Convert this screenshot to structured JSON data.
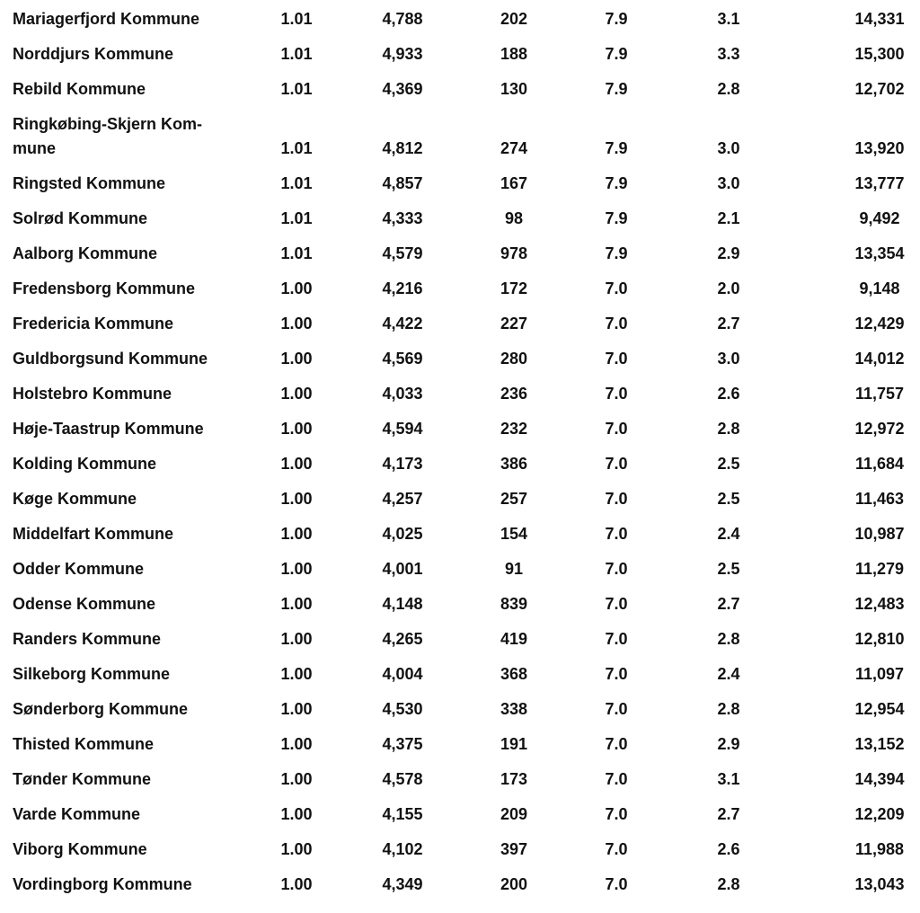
{
  "page": {
    "background_color": "#ffffff",
    "text_color": "#111111"
  },
  "table": {
    "description": "Municipality statistics table fragment (no visible headers)",
    "rows": [
      {
        "name": "Mariagerfjord Kommune",
        "values": [
          "1.01",
          "4,788",
          "202",
          "7.9",
          "3.1",
          "14,331"
        ]
      },
      {
        "name": "Norddjurs Kommune",
        "values": [
          "1.01",
          "4,933",
          "188",
          "7.9",
          "3.3",
          "15,300"
        ]
      },
      {
        "name": "Rebild Kommune",
        "values": [
          "1.01",
          "4,369",
          "130",
          "7.9",
          "2.8",
          "12,702"
        ]
      },
      {
        "name": "Ringkøbing-Skjern Kom-\nmune",
        "values": [
          "1.01",
          "4,812",
          "274",
          "7.9",
          "3.0",
          "13,920"
        ]
      },
      {
        "name": "Ringsted Kommune",
        "values": [
          "1.01",
          "4,857",
          "167",
          "7.9",
          "3.0",
          "13,777"
        ]
      },
      {
        "name": "Solrød Kommune",
        "values": [
          "1.01",
          "4,333",
          "98",
          "7.9",
          "2.1",
          "9,492"
        ]
      },
      {
        "name": "Aalborg Kommune",
        "values": [
          "1.01",
          "4,579",
          "978",
          "7.9",
          "2.9",
          "13,354"
        ]
      },
      {
        "name": "Fredensborg Kommune",
        "values": [
          "1.00",
          "4,216",
          "172",
          "7.0",
          "2.0",
          "9,148"
        ]
      },
      {
        "name": "Fredericia Kommune",
        "values": [
          "1.00",
          "4,422",
          "227",
          "7.0",
          "2.7",
          "12,429"
        ]
      },
      {
        "name": "Guldborgsund Kommune",
        "values": [
          "1.00",
          "4,569",
          "280",
          "7.0",
          "3.0",
          "14,012"
        ]
      },
      {
        "name": "Holstebro Kommune",
        "values": [
          "1.00",
          "4,033",
          "236",
          "7.0",
          "2.6",
          "11,757"
        ]
      },
      {
        "name": "Høje-Taastrup Kommune",
        "values": [
          "1.00",
          "4,594",
          "232",
          "7.0",
          "2.8",
          "12,972"
        ]
      },
      {
        "name": "Kolding Kommune",
        "values": [
          "1.00",
          "4,173",
          "386",
          "7.0",
          "2.5",
          "11,684"
        ]
      },
      {
        "name": "Køge Kommune",
        "values": [
          "1.00",
          "4,257",
          "257",
          "7.0",
          "2.5",
          "11,463"
        ]
      },
      {
        "name": "Middelfart Kommune",
        "values": [
          "1.00",
          "4,025",
          "154",
          "7.0",
          "2.4",
          "10,987"
        ]
      },
      {
        "name": "Odder Kommune",
        "values": [
          "1.00",
          "4,001",
          "91",
          "7.0",
          "2.5",
          "11,279"
        ]
      },
      {
        "name": "Odense Kommune",
        "values": [
          "1.00",
          "4,148",
          "839",
          "7.0",
          "2.7",
          "12,483"
        ]
      },
      {
        "name": "Randers Kommune",
        "values": [
          "1.00",
          "4,265",
          "419",
          "7.0",
          "2.8",
          "12,810"
        ]
      },
      {
        "name": "Silkeborg Kommune",
        "values": [
          "1.00",
          "4,004",
          "368",
          "7.0",
          "2.4",
          "11,097"
        ]
      },
      {
        "name": "Sønderborg Kommune",
        "values": [
          "1.00",
          "4,530",
          "338",
          "7.0",
          "2.8",
          "12,954"
        ]
      },
      {
        "name": "Thisted Kommune",
        "values": [
          "1.00",
          "4,375",
          "191",
          "7.0",
          "2.9",
          "13,152"
        ]
      },
      {
        "name": "Tønder Kommune",
        "values": [
          "1.00",
          "4,578",
          "173",
          "7.0",
          "3.1",
          "14,394"
        ]
      },
      {
        "name": "Varde Kommune",
        "values": [
          "1.00",
          "4,155",
          "209",
          "7.0",
          "2.7",
          "12,209"
        ]
      },
      {
        "name": "Viborg Kommune",
        "values": [
          "1.00",
          "4,102",
          "397",
          "7.0",
          "2.6",
          "11,988"
        ]
      },
      {
        "name": "Vordingborg Kommune",
        "values": [
          "1.00",
          "4,349",
          "200",
          "7.0",
          "2.8",
          "13,043"
        ]
      }
    ]
  }
}
